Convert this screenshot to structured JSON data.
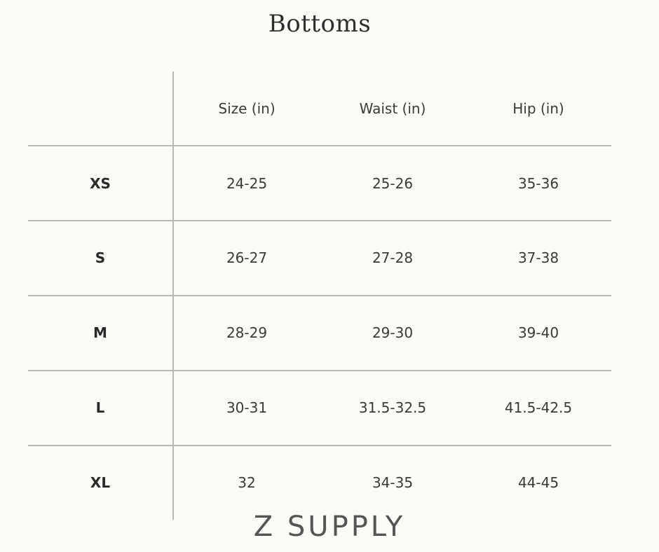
{
  "title": "Bottoms",
  "table": {
    "headers": [
      "Size (in)",
      "Waist (in)",
      "Hip (in)"
    ],
    "rows": [
      {
        "label": "XS",
        "values": [
          "24-25",
          "25-26",
          "35-36"
        ]
      },
      {
        "label": "S",
        "values": [
          "26-27",
          "27-28",
          "37-38"
        ]
      },
      {
        "label": "M",
        "values": [
          "28-29",
          "29-30",
          "39-40"
        ]
      },
      {
        "label": "L",
        "values": [
          "30-31",
          "31.5-32.5",
          "41.5-42.5"
        ]
      },
      {
        "label": "XL",
        "values": [
          "32",
          "34-35",
          "44-45"
        ]
      }
    ]
  },
  "brand": "Z SUPPLY"
}
